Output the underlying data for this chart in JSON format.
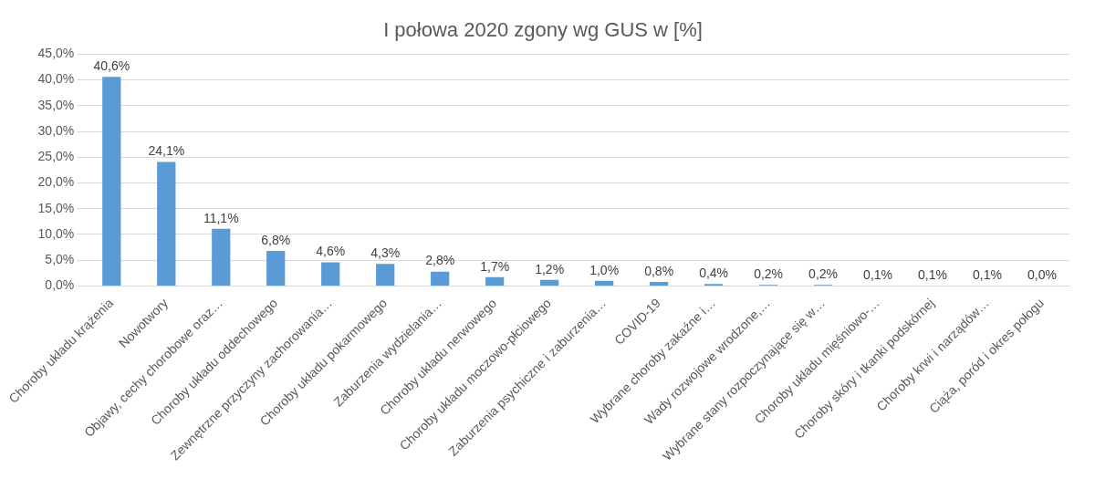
{
  "chart_data": {
    "type": "bar",
    "title": "I połowa 2020 zgony wg GUS w [%]",
    "categories": [
      "Choroby układu krążenia",
      "Nowotwory",
      "Objawy, cechy chorobowe oraz…",
      "Choroby układu oddechowego",
      "Zewnętrzne przyczyny zachorowania…",
      "Choroby układu pokarmowego",
      "Zaburzenia wydzielania…",
      "Choroby układu nerwowego",
      "Choroby układu moczowo-płciowego",
      "Zaburzenia psychiczne i zaburzenia…",
      "COVID-19",
      "Wybrane choroby zakaźne i…",
      "Wady rozwojowe wrodzone,…",
      "Wybrane stany rozpoczynające się w…",
      "Choroby układu mięśniowo-…",
      "Choroby skóry i tkanki podskórnej",
      "Choroby krwi i narządów…",
      "Ciąża, poród i okres połogu"
    ],
    "values": [
      40.6,
      24.1,
      11.1,
      6.8,
      4.6,
      4.3,
      2.8,
      1.7,
      1.2,
      1.0,
      0.8,
      0.4,
      0.2,
      0.2,
      0.1,
      0.1,
      0.1,
      0.0
    ],
    "value_labels": [
      "40,6%",
      "24,1%",
      "11,1%",
      "6,8%",
      "4,6%",
      "4,3%",
      "2,8%",
      "1,7%",
      "1,2%",
      "1,0%",
      "0,8%",
      "0,4%",
      "0,2%",
      "0,2%",
      "0,1%",
      "0,1%",
      "0,1%",
      "0,0%"
    ],
    "color": "#5b9bd5",
    "ylim": [
      0,
      45
    ],
    "yticks": [
      {
        "value": 0,
        "label": "0,0%"
      },
      {
        "value": 5,
        "label": "5,0%"
      },
      {
        "value": 10,
        "label": "10,0%"
      },
      {
        "value": 15,
        "label": "15,0%"
      },
      {
        "value": 20,
        "label": "20,0%"
      },
      {
        "value": 25,
        "label": "25,0%"
      },
      {
        "value": 30,
        "label": "30,0%"
      },
      {
        "value": 35,
        "label": "35,0%"
      },
      {
        "value": 40,
        "label": "40,0%"
      },
      {
        "value": 45,
        "label": "45,0%"
      }
    ],
    "grid": "y",
    "legend": false
  }
}
